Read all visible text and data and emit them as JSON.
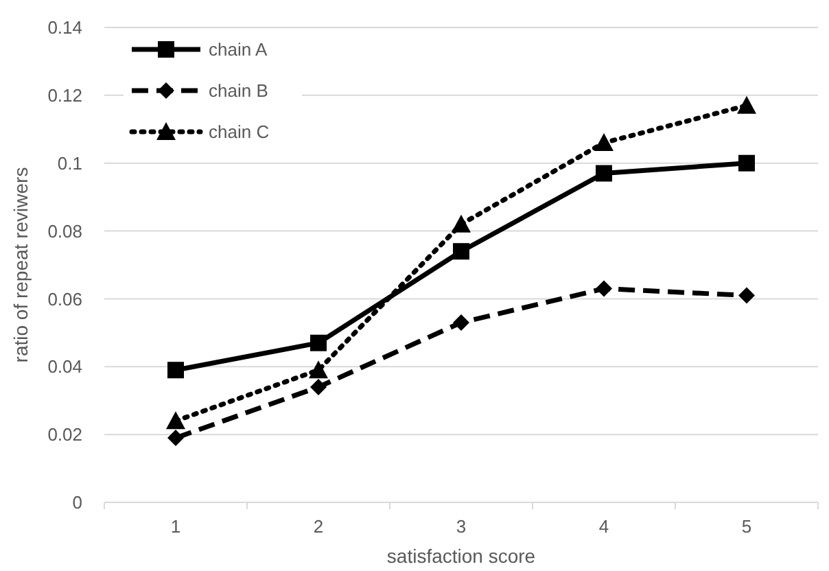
{
  "chart_data": {
    "type": "line",
    "xlabel": "satisfaction score",
    "ylabel": "ratio of repeat reviwers",
    "categories": [
      "1",
      "2",
      "3",
      "4",
      "5"
    ],
    "series": [
      {
        "name": "chain A",
        "color": "#000000",
        "marker": "square",
        "line_style": "solid",
        "values": [
          0.039,
          0.047,
          0.074,
          0.097,
          0.1
        ]
      },
      {
        "name": "chain B",
        "color": "#000000",
        "marker": "diamond",
        "line_style": "dashed",
        "values": [
          0.019,
          0.034,
          0.053,
          0.063,
          0.061
        ]
      },
      {
        "name": "chain C",
        "color": "#000000",
        "marker": "triangle",
        "line_style": "dotted",
        "values": [
          0.024,
          0.039,
          0.082,
          0.106,
          0.117
        ]
      }
    ],
    "ylim": [
      0,
      0.14
    ],
    "yticks": [
      0,
      0.02,
      0.04,
      0.06,
      0.08,
      0.1,
      0.12,
      0.14
    ],
    "grid": "y",
    "legend": "top left"
  }
}
